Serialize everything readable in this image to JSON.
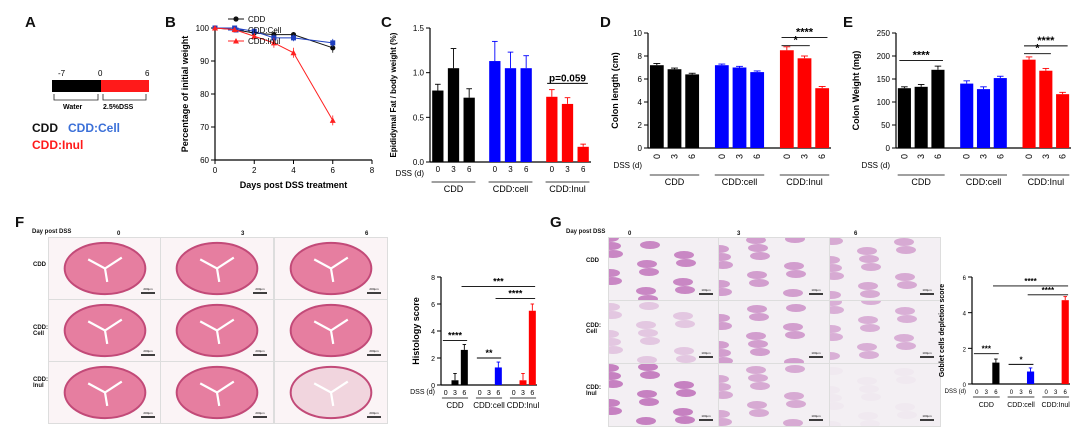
{
  "panels": {
    "A": {
      "letter": "A",
      "timeline": {
        "t_start": "-7",
        "t_mid": "0",
        "t_end": "6",
        "seg1": "Water",
        "seg2": "2.5%DSS",
        "seg1_color": "#000000",
        "seg2_color": "#ff1a1a"
      },
      "groups": [
        {
          "label": "CDD",
          "color": "#111111"
        },
        {
          "label": "CDD:Cell",
          "color": "#3a6fd8"
        },
        {
          "label": "CDD:Inul",
          "color": "#ff1a1a"
        }
      ]
    },
    "B": {
      "letter": "B"
    },
    "C": {
      "letter": "C"
    },
    "D": {
      "letter": "D"
    },
    "E": {
      "letter": "E"
    },
    "F": {
      "letter": "F",
      "header": "Day post DSS",
      "days": [
        "0",
        "3",
        "6"
      ],
      "rows": [
        "CDD",
        "CDD:\nCell",
        "CDD:\nInul"
      ],
      "scalebar": "200μm"
    },
    "G": {
      "letter": "G",
      "header": "Day post DSS",
      "days": [
        "0",
        "3",
        "6"
      ],
      "rows": [
        "CDD",
        "CDD:\nCell",
        "CDD:\nInul"
      ],
      "scalebar": "100μm"
    }
  },
  "chart_data": [
    {
      "id": "B",
      "type": "line",
      "xlabel": "Days post DSS treatment",
      "ylabel": "Percentage of initial weight",
      "xlim": [
        0,
        8
      ],
      "ylim": [
        60,
        100
      ],
      "xticks": [
        0,
        2,
        4,
        6,
        8
      ],
      "yticks": [
        60,
        70,
        80,
        90,
        100
      ],
      "legend_position": "top-left",
      "series": [
        {
          "name": "CDD",
          "color": "#111111",
          "marker": "circle",
          "x": [
            0,
            1,
            2,
            3,
            4,
            6
          ],
          "y": [
            100,
            99.5,
            98.5,
            98,
            98,
            94
          ],
          "err": [
            0.5,
            0.5,
            0.8,
            0.8,
            0.8,
            1.5
          ]
        },
        {
          "name": "CDD:Cell",
          "color": "#1f3fbf",
          "marker": "square",
          "x": [
            0,
            1,
            2,
            3,
            4,
            6
          ],
          "y": [
            100,
            100,
            99,
            97,
            97,
            95.5
          ],
          "err": [
            0.5,
            0.5,
            0.8,
            1,
            1,
            1.2
          ]
        },
        {
          "name": "CDD:Inul",
          "color": "#ff2020",
          "marker": "triangle",
          "x": [
            0,
            1,
            2,
            3,
            4,
            6
          ],
          "y": [
            100,
            99.5,
            97.5,
            95.5,
            92.5,
            72
          ],
          "err": [
            0.5,
            0.5,
            1,
            1.5,
            1.5,
            1.5
          ]
        }
      ]
    },
    {
      "id": "C",
      "type": "bar",
      "ylabel": "Epididymal Fat / body weight (%)",
      "ylim": [
        0,
        1.5
      ],
      "yticks": [
        "0.0",
        "0.5",
        "1.0",
        "1.5"
      ],
      "x_axis_label": "DSS (d)",
      "groups": [
        "CDD",
        "CDD:cell",
        "CDD:Inul"
      ],
      "categories": [
        "0",
        "3",
        "6",
        "0",
        "3",
        "6",
        "0",
        "3",
        "6"
      ],
      "values": [
        0.8,
        1.05,
        0.72,
        1.13,
        1.05,
        1.05,
        0.73,
        0.65,
        0.17
      ],
      "errors": [
        0.07,
        0.22,
        0.1,
        0.22,
        0.18,
        0.14,
        0.08,
        0.07,
        0.03
      ],
      "colors": [
        "#000000",
        "#000000",
        "#000000",
        "#0000ff",
        "#0000ff",
        "#0000ff",
        "#ff0000",
        "#ff0000",
        "#ff0000"
      ],
      "annotations": [
        {
          "text": "p=0.059",
          "from": 6,
          "to": 8,
          "y": 0.88
        }
      ]
    },
    {
      "id": "D",
      "type": "bar",
      "ylabel": "Colon length (cm)",
      "ylim": [
        0,
        10
      ],
      "yticks": [
        "0",
        "2",
        "4",
        "6",
        "8",
        "10"
      ],
      "x_axis_label": "DSS (d)",
      "groups": [
        "CDD",
        "CDD:cell",
        "CDD:Inul"
      ],
      "categories": [
        "0",
        "3",
        "6",
        "0",
        "3",
        "6",
        "0",
        "3",
        "6"
      ],
      "values": [
        7.2,
        6.85,
        6.4,
        7.2,
        7.0,
        6.6,
        8.5,
        7.8,
        5.2
      ],
      "errors": [
        0.15,
        0.1,
        0.1,
        0.1,
        0.1,
        0.1,
        0.3,
        0.2,
        0.15
      ],
      "colors": [
        "#000000",
        "#000000",
        "#000000",
        "#0000ff",
        "#0000ff",
        "#0000ff",
        "#ff0000",
        "#ff0000",
        "#ff0000"
      ],
      "annotations": [
        {
          "text": "****",
          "from": 6,
          "to": 8,
          "y": 9.6
        },
        {
          "text": "*",
          "from": 6,
          "to": 7,
          "y": 8.9
        }
      ]
    },
    {
      "id": "E",
      "type": "bar",
      "ylabel": "Colon Weight (mg)",
      "ylim": [
        0,
        250
      ],
      "yticks": [
        "0",
        "50",
        "100",
        "150",
        "200",
        "250"
      ],
      "x_axis_label": "DSS (d)",
      "groups": [
        "CDD",
        "CDD:cell",
        "CDD:Inul"
      ],
      "categories": [
        "0",
        "3",
        "6",
        "0",
        "3",
        "6",
        "0",
        "3",
        "6"
      ],
      "values": [
        130,
        133,
        170,
        140,
        128,
        152,
        192,
        168,
        117
      ],
      "errors": [
        3,
        5,
        8,
        6,
        5,
        4,
        6,
        5,
        4
      ],
      "colors": [
        "#000000",
        "#000000",
        "#000000",
        "#0000ff",
        "#0000ff",
        "#0000ff",
        "#ff0000",
        "#ff0000",
        "#ff0000"
      ],
      "annotations": [
        {
          "text": "****",
          "from": 0,
          "to": 2,
          "y": 190
        },
        {
          "text": "****",
          "from": 6,
          "to": 8,
          "y": 222
        },
        {
          "text": "*",
          "from": 6,
          "to": 7,
          "y": 205
        }
      ]
    },
    {
      "id": "F",
      "type": "bar",
      "ylabel": "Histology score",
      "ylim": [
        0,
        8
      ],
      "yticks": [
        "0",
        "2",
        "4",
        "6",
        "8"
      ],
      "x_axis_label": "DSS (d)",
      "groups": [
        "CDD",
        "CDD:cell",
        "CDD:Inul"
      ],
      "categories": [
        "0",
        "3",
        "6",
        "0",
        "3",
        "6",
        "0",
        "3",
        "6"
      ],
      "values": [
        0,
        0.35,
        2.6,
        0,
        0,
        1.3,
        0,
        0.35,
        5.5
      ],
      "errors": [
        0,
        0.5,
        0.4,
        0,
        0,
        0.4,
        0,
        0.5,
        0.5
      ],
      "colors": [
        "#000000",
        "#000000",
        "#000000",
        "#0000ff",
        "#0000ff",
        "#0000ff",
        "#ff0000",
        "#ff0000",
        "#ff0000"
      ],
      "annotations": [
        {
          "text": "****",
          "from": 0,
          "to": 2,
          "y": 3.3
        },
        {
          "text": "**",
          "from": 3,
          "to": 5,
          "y": 2.0
        },
        {
          "text": "***",
          "from": 2,
          "to": 8,
          "y": 7.3
        },
        {
          "text": "****",
          "from": 5,
          "to": 8,
          "y": 6.4
        }
      ]
    },
    {
      "id": "G",
      "type": "bar",
      "ylabel": "Goblet cells depletion score",
      "ylim": [
        0,
        6
      ],
      "yticks": [
        "0",
        "2",
        "4",
        "6"
      ],
      "x_axis_label": "DSS (d)",
      "groups": [
        "CDD",
        "CDD:cell",
        "CDD:Inul"
      ],
      "categories": [
        "0",
        "3",
        "6",
        "0",
        "3",
        "6",
        "0",
        "3",
        "6"
      ],
      "values": [
        0,
        0,
        1.2,
        0,
        0,
        0.7,
        0,
        0,
        4.7
      ],
      "errors": [
        0,
        0,
        0.2,
        0,
        0,
        0.2,
        0,
        0,
        0.2
      ],
      "colors": [
        "#000000",
        "#000000",
        "#000000",
        "#0000ff",
        "#0000ff",
        "#0000ff",
        "#ff0000",
        "#ff0000",
        "#ff0000"
      ],
      "annotations": [
        {
          "text": "***",
          "from": 0,
          "to": 2,
          "y": 1.7
        },
        {
          "text": "*",
          "from": 3,
          "to": 5,
          "y": 1.1
        },
        {
          "text": "****",
          "from": 2,
          "to": 8,
          "y": 5.5
        },
        {
          "text": "****",
          "from": 5,
          "to": 8,
          "y": 5.0
        }
      ]
    }
  ]
}
